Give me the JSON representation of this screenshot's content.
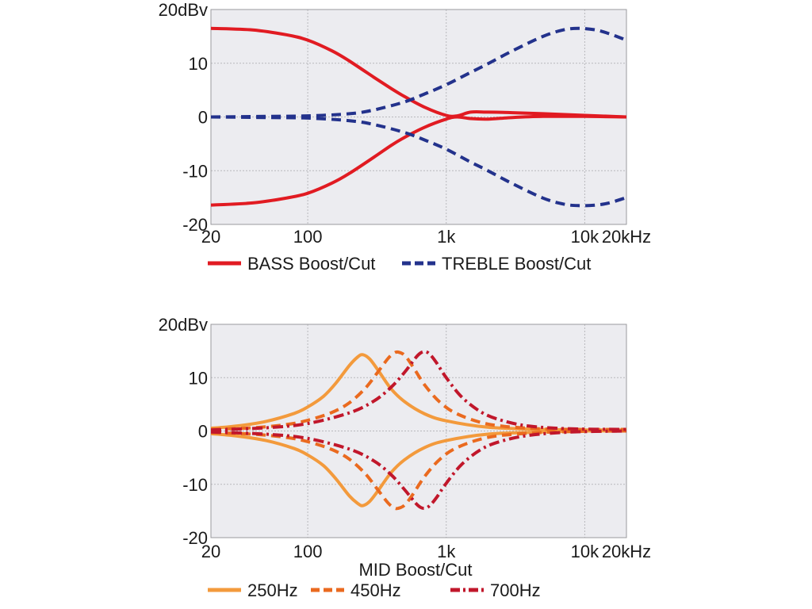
{
  "chart_data": [
    {
      "type": "line",
      "xscale": "log",
      "xlim": [
        20,
        20000
      ],
      "ylim": [
        -20,
        20
      ],
      "grid": true,
      "legend_position": "bottom",
      "ytick_labels": [
        {
          "value": 20,
          "label": "20dBv"
        },
        {
          "value": 10,
          "label": "10"
        },
        {
          "value": 0,
          "label": "0"
        },
        {
          "value": -10,
          "label": "-10"
        },
        {
          "value": -20,
          "label": "-20"
        }
      ],
      "xtick_labels": [
        {
          "value": 20,
          "label": "20"
        },
        {
          "value": 100,
          "label": "100"
        },
        {
          "value": 1000,
          "label": "1k"
        },
        {
          "value": 10000,
          "label": "10k"
        },
        {
          "value": 20000,
          "label": "20kHz"
        }
      ],
      "xgrid": [
        100,
        1000,
        10000
      ],
      "xlabel": "",
      "legend": [
        {
          "label": "BASS Boost/Cut",
          "color": "#e11b22",
          "dash": "solid"
        },
        {
          "label": "TREBLE Boost/Cut",
          "color": "#23328c",
          "dash": "dashed"
        }
      ],
      "series": [
        {
          "legend": 0,
          "color": "#e11b22",
          "dash": "solid",
          "x": [
            20,
            40,
            70,
            100,
            150,
            200,
            300,
            400,
            500,
            700,
            1000,
            1200,
            1500,
            2000,
            3000,
            5000,
            10000,
            20000
          ],
          "y": [
            16.5,
            16.2,
            15.3,
            14.3,
            12.3,
            10.4,
            7.4,
            5.3,
            3.8,
            1.8,
            0.3,
            0.2,
            0.9,
            0.9,
            0.8,
            0.6,
            0.3,
            0
          ]
        },
        {
          "legend": 0,
          "color": "#e11b22",
          "dash": "solid",
          "x": [
            20,
            40,
            70,
            100,
            150,
            200,
            300,
            400,
            500,
            700,
            1000,
            1200,
            1500,
            2000,
            3000,
            5000,
            10000,
            20000
          ],
          "y": [
            -16.4,
            -16,
            -15.1,
            -14.2,
            -12.3,
            -10.5,
            -7.5,
            -5.3,
            -3.8,
            -1.9,
            -0.4,
            0,
            -0.3,
            -0.4,
            -0.1,
            0.1,
            0.1,
            0
          ]
        },
        {
          "legend": 1,
          "color": "#23328c",
          "dash": "dashed",
          "x": [
            20,
            50,
            100,
            200,
            300,
            500,
            700,
            1000,
            1500,
            2000,
            3000,
            5000,
            7000,
            9000,
            12000,
            15000,
            20000
          ],
          "y": [
            0,
            0.1,
            0.2,
            0.6,
            1.3,
            2.8,
            4.3,
            6.0,
            8.3,
            9.9,
            12.3,
            15.0,
            16.2,
            16.5,
            16.2,
            15.5,
            14.3
          ]
        },
        {
          "legend": 1,
          "color": "#23328c",
          "dash": "dashed",
          "x": [
            20,
            50,
            100,
            200,
            300,
            500,
            700,
            1000,
            1500,
            2000,
            3000,
            5000,
            7000,
            9000,
            12000,
            15000,
            20000
          ],
          "y": [
            0,
            -0.1,
            -0.2,
            -0.7,
            -1.4,
            -2.9,
            -4.3,
            -6.0,
            -8.4,
            -10.0,
            -12.4,
            -15.1,
            -16.2,
            -16.5,
            -16.4,
            -16.0,
            -15.0
          ]
        }
      ]
    },
    {
      "type": "line",
      "xscale": "log",
      "xlim": [
        20,
        20000
      ],
      "ylim": [
        -20,
        20
      ],
      "grid": true,
      "legend_position": "bottom",
      "ytick_labels": [
        {
          "value": 20,
          "label": "20dBv"
        },
        {
          "value": 10,
          "label": "10"
        },
        {
          "value": 0,
          "label": "0"
        },
        {
          "value": -10,
          "label": "-10"
        },
        {
          "value": -20,
          "label": "-20"
        }
      ],
      "xtick_labels": [
        {
          "value": 20,
          "label": "20"
        },
        {
          "value": 100,
          "label": "100"
        },
        {
          "value": 1000,
          "label": "1k"
        },
        {
          "value": 10000,
          "label": "10k"
        },
        {
          "value": 20000,
          "label": "20kHz"
        }
      ],
      "xgrid": [
        100,
        1000,
        10000
      ],
      "xlabel": "MID Boost/Cut",
      "legend": [
        {
          "label": "250Hz",
          "color": "#f39a3c",
          "dash": "solid"
        },
        {
          "label": "450Hz",
          "color": "#ea6a1f",
          "dash": "dashed"
        },
        {
          "label": "700Hz",
          "color": "#c1172b",
          "dash": "dashdot"
        }
      ],
      "series": [
        {
          "legend": 0,
          "color": "#f39a3c",
          "dash": "solid",
          "x": [
            20,
            30,
            50,
            80,
            100,
            130,
            160,
            200,
            230,
            250,
            280,
            320,
            400,
            500,
            700,
            1000,
            2000,
            5000,
            10000,
            20000
          ],
          "y": [
            0.5,
            0.9,
            1.8,
            3.3,
            4.5,
            6.5,
            9.0,
            12.3,
            13.9,
            14.3,
            13.5,
            11.5,
            7.9,
            5.5,
            3.2,
            1.9,
            0.7,
            0.3,
            0.2,
            0.2
          ]
        },
        {
          "legend": 0,
          "color": "#f39a3c",
          "dash": "solid",
          "x": [
            20,
            30,
            50,
            80,
            100,
            130,
            160,
            200,
            230,
            250,
            280,
            320,
            400,
            500,
            700,
            1000,
            2000,
            5000,
            10000,
            20000
          ],
          "y": [
            -0.5,
            -0.9,
            -1.8,
            -3.3,
            -4.5,
            -6.5,
            -9.0,
            -12.2,
            -13.6,
            -14.0,
            -13.2,
            -11.3,
            -7.8,
            -5.4,
            -3.1,
            -1.8,
            -0.6,
            -0.2,
            0,
            0
          ]
        },
        {
          "legend": 1,
          "color": "#ea6a1f",
          "dash": "dashed",
          "x": [
            20,
            40,
            70,
            100,
            150,
            200,
            260,
            320,
            380,
            420,
            450,
            500,
            570,
            700,
            900,
            1200,
            2000,
            4000,
            8000,
            20000
          ],
          "y": [
            0.3,
            0.6,
            1.2,
            2.0,
            3.5,
            5.3,
            8.0,
            11.0,
            13.6,
            14.6,
            14.8,
            14.2,
            12.2,
            8.6,
            5.4,
            3.2,
            1.3,
            0.5,
            0.3,
            0.3
          ]
        },
        {
          "legend": 1,
          "color": "#ea6a1f",
          "dash": "dashed",
          "x": [
            20,
            40,
            70,
            100,
            150,
            200,
            260,
            320,
            380,
            420,
            450,
            500,
            570,
            700,
            900,
            1200,
            2000,
            4000,
            8000,
            20000
          ],
          "y": [
            -0.3,
            -0.6,
            -1.2,
            -2.0,
            -3.5,
            -5.3,
            -8.0,
            -11.0,
            -13.5,
            -14.4,
            -14.5,
            -13.9,
            -12.0,
            -8.5,
            -5.3,
            -3.1,
            -1.2,
            -0.4,
            -0.1,
            0
          ]
        },
        {
          "legend": 2,
          "color": "#c1172b",
          "dash": "dashdot",
          "x": [
            20,
            50,
            100,
            200,
            300,
            400,
            500,
            600,
            650,
            700,
            760,
            850,
            1000,
            1300,
            1800,
            2500,
            4000,
            8000,
            20000
          ],
          "y": [
            0.2,
            0.6,
            1.4,
            3.4,
            5.6,
            8.2,
            11.0,
            13.7,
            14.6,
            14.9,
            14.4,
            12.8,
            10.0,
            6.3,
            3.5,
            2.0,
            0.9,
            0.4,
            0.3
          ]
        },
        {
          "legend": 2,
          "color": "#c1172b",
          "dash": "dashdot",
          "x": [
            20,
            50,
            100,
            200,
            300,
            400,
            500,
            600,
            650,
            700,
            760,
            850,
            1000,
            1300,
            1800,
            2500,
            4000,
            8000,
            20000
          ],
          "y": [
            -0.2,
            -0.6,
            -1.4,
            -3.4,
            -5.6,
            -8.2,
            -11.0,
            -13.5,
            -14.3,
            -14.5,
            -14.0,
            -12.5,
            -9.8,
            -6.2,
            -3.4,
            -1.9,
            -0.8,
            -0.2,
            0
          ]
        }
      ]
    }
  ]
}
